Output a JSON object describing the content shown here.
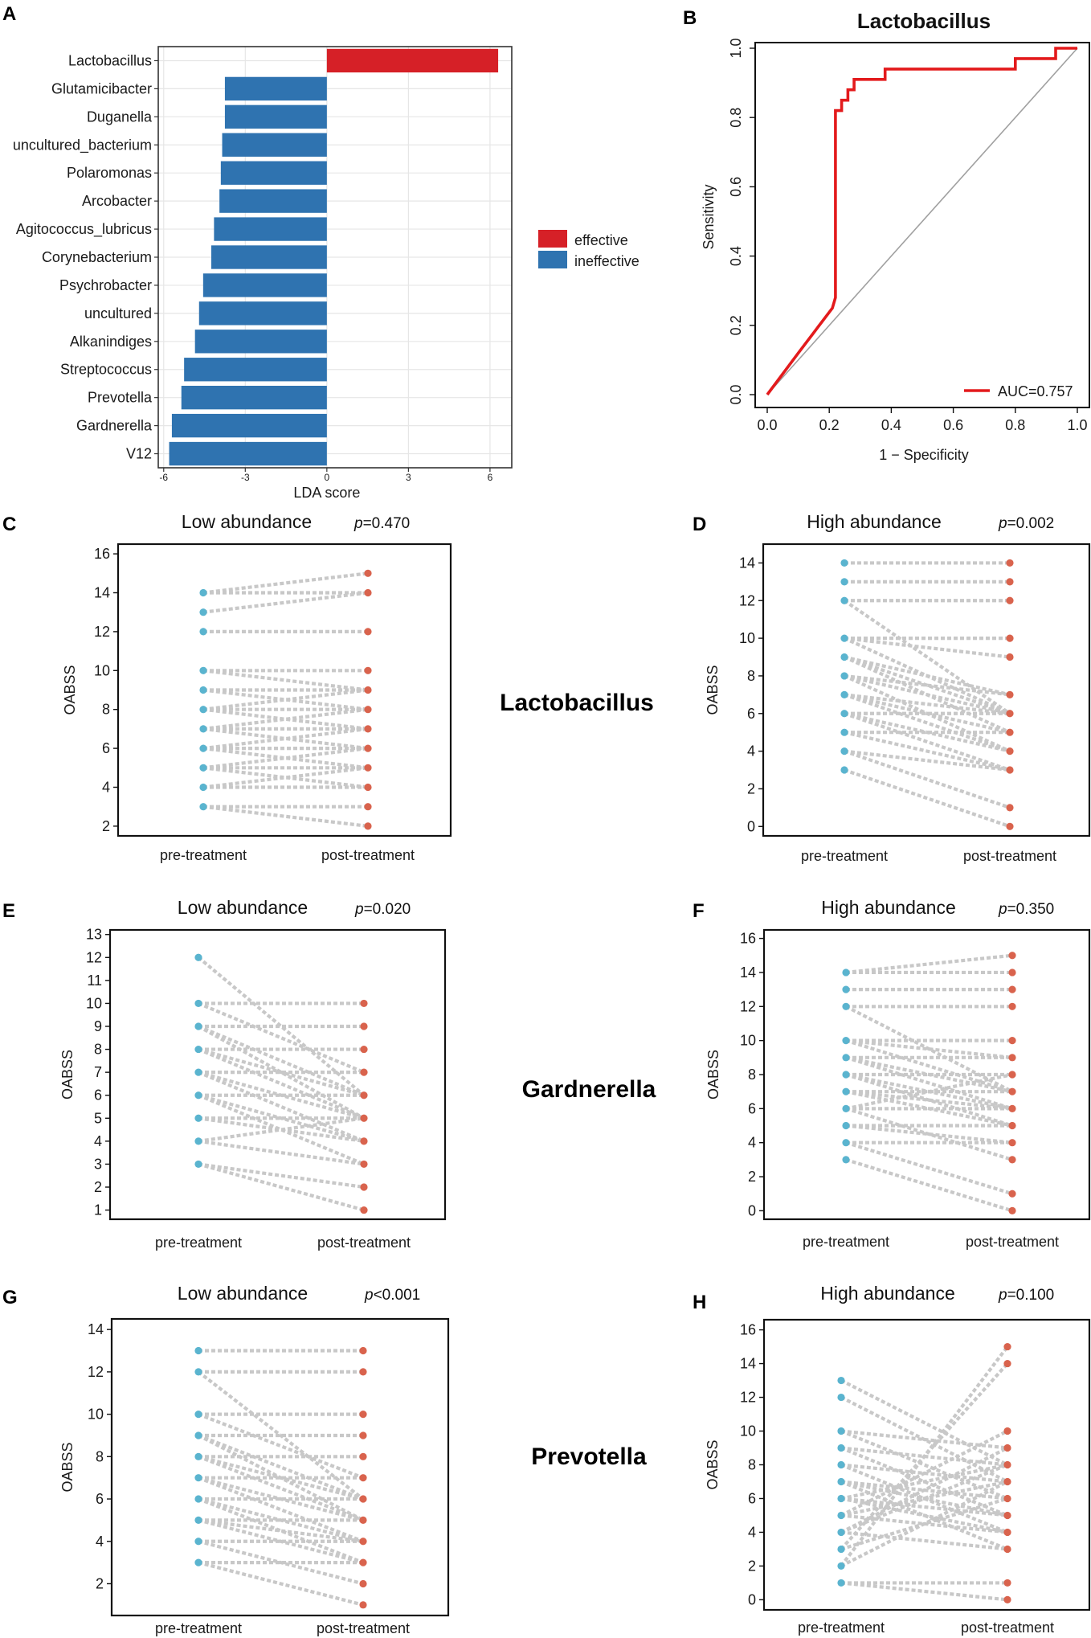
{
  "figure": {
    "panel_letters": [
      "A",
      "B",
      "C",
      "D",
      "E",
      "F",
      "G",
      "H"
    ],
    "genus_labels": [
      "Lactobacillus",
      "Gardnerella",
      "Prevotella"
    ]
  },
  "colors": {
    "effective": "#d62027",
    "ineffective": "#2f73b0",
    "pre": "#5ab4cf",
    "post": "#d9634d",
    "connector": "#c8c8c8",
    "roc": "#e31a1c",
    "diagonal": "#a0a0a0",
    "grid": "#e6e6e6"
  },
  "chart_data": [
    {
      "id": "A",
      "type": "bar",
      "orientation": "horizontal",
      "xlabel": "LDA score",
      "xlim": [
        -6.2,
        6.8
      ],
      "xticks": [
        -6,
        -3,
        0,
        3,
        6
      ],
      "xtick_labels": [
        "-6",
        "-3",
        "0",
        "3",
        "6"
      ],
      "categories": [
        "Lactobacillus",
        "Glutamicibacter",
        "Duganella",
        "uncultured_bacterium",
        "Polaromonas",
        "Arcobacter",
        "Agitococcus_lubricus",
        "Corynebacterium",
        "Psychrobacter",
        "uncultured",
        "Alkanindiges",
        "Streptococcus",
        "Prevotella",
        "Gardnerella",
        "V12"
      ],
      "values": [
        6.3,
        -3.75,
        -3.75,
        -3.85,
        -3.9,
        -3.95,
        -4.15,
        -4.25,
        -4.55,
        -4.7,
        -4.85,
        -5.25,
        -5.35,
        -5.7,
        -5.8
      ],
      "groups": [
        "effective",
        "ineffective",
        "ineffective",
        "ineffective",
        "ineffective",
        "ineffective",
        "ineffective",
        "ineffective",
        "ineffective",
        "ineffective",
        "ineffective",
        "ineffective",
        "ineffective",
        "ineffective",
        "ineffective"
      ],
      "legend": [
        "effective",
        "ineffective"
      ],
      "grid": true
    },
    {
      "id": "B",
      "type": "line",
      "title": "Lactobacillus",
      "xlabel": "1 − Specificity",
      "ylabel": "Sensitivity",
      "xlim": [
        0,
        1
      ],
      "ylim": [
        0,
        1
      ],
      "xtick_labels": [
        "0.0",
        "0.2",
        "0.4",
        "0.6",
        "0.8",
        "1.0"
      ],
      "ytick_labels": [
        "0.0",
        "0.2",
        "0.4",
        "0.6",
        "0.8",
        "1.0"
      ],
      "legend": "AUC=0.757",
      "series": [
        {
          "name": "ROC",
          "x": [
            0,
            0.1,
            0.21,
            0.22,
            0.22,
            0.24,
            0.24,
            0.26,
            0.26,
            0.28,
            0.28,
            0.38,
            0.38,
            0.8,
            0.8,
            0.93,
            0.93,
            0.98,
            0.98,
            1.0
          ],
          "y": [
            0,
            0.12,
            0.25,
            0.28,
            0.82,
            0.82,
            0.85,
            0.85,
            0.88,
            0.88,
            0.91,
            0.91,
            0.94,
            0.94,
            0.97,
            0.97,
            1.0,
            1.0,
            1.0,
            1.0
          ]
        }
      ]
    },
    {
      "id": "C",
      "type": "scatter",
      "title": "Low abundance",
      "p_label": "p",
      "p_value": "=0.470",
      "ylabel": "OABSS",
      "categories": [
        "pre-treatment",
        "post-treatment"
      ],
      "ylim": [
        1.5,
        16.5
      ],
      "yticks": [
        2,
        4,
        6,
        8,
        10,
        12,
        14,
        16
      ],
      "pre": [
        14,
        13,
        12,
        10,
        9,
        8,
        7,
        6,
        5,
        4,
        3
      ],
      "post": [
        15,
        14,
        12,
        10,
        9,
        8,
        7,
        6,
        5,
        4,
        3,
        2
      ],
      "pairs": [
        [
          14,
          15
        ],
        [
          14,
          14
        ],
        [
          13,
          14
        ],
        [
          12,
          12
        ],
        [
          10,
          10
        ],
        [
          10,
          9
        ],
        [
          9,
          9
        ],
        [
          9,
          8
        ],
        [
          8,
          8
        ],
        [
          8,
          7
        ],
        [
          7,
          7
        ],
        [
          7,
          8
        ],
        [
          6,
          6
        ],
        [
          6,
          7
        ],
        [
          5,
          5
        ],
        [
          5,
          6
        ],
        [
          4,
          4
        ],
        [
          4,
          5
        ],
        [
          3,
          3
        ],
        [
          3,
          2
        ],
        [
          6,
          5
        ],
        [
          8,
          9
        ],
        [
          7,
          6
        ],
        [
          5,
          4
        ]
      ]
    },
    {
      "id": "D",
      "type": "scatter",
      "title": "High abundance",
      "p_label": "p",
      "p_value": "=0.002",
      "ylabel": "OABSS",
      "categories": [
        "pre-treatment",
        "post-treatment"
      ],
      "ylim": [
        -0.5,
        15
      ],
      "yticks": [
        0,
        2,
        4,
        6,
        8,
        10,
        12,
        14
      ],
      "pre": [
        14,
        13,
        12,
        10,
        9,
        8,
        7,
        6,
        5,
        4,
        3
      ],
      "post": [
        14,
        13,
        12,
        10,
        9,
        7,
        6,
        5,
        4,
        3,
        1,
        0
      ],
      "pairs": [
        [
          14,
          14
        ],
        [
          13,
          13
        ],
        [
          12,
          12
        ],
        [
          12,
          6
        ],
        [
          10,
          10
        ],
        [
          10,
          9
        ],
        [
          10,
          6
        ],
        [
          9,
          7
        ],
        [
          9,
          5
        ],
        [
          8,
          6
        ],
        [
          8,
          4
        ],
        [
          7,
          6
        ],
        [
          7,
          5
        ],
        [
          6,
          6
        ],
        [
          6,
          4
        ],
        [
          5,
          5
        ],
        [
          5,
          3
        ],
        [
          4,
          3
        ],
        [
          4,
          1
        ],
        [
          3,
          0
        ],
        [
          8,
          7
        ],
        [
          6,
          3
        ],
        [
          9,
          6
        ],
        [
          7,
          4
        ]
      ]
    },
    {
      "id": "E",
      "type": "scatter",
      "title": "Low abundance",
      "p_label": "p",
      "p_value": "=0.020",
      "ylabel": "OABSS",
      "categories": [
        "pre-treatment",
        "post-treatment"
      ],
      "ylim": [
        0.6,
        13.2
      ],
      "yticks": [
        1,
        2,
        3,
        4,
        5,
        6,
        7,
        8,
        9,
        10,
        11,
        12,
        13
      ],
      "pre": [
        12,
        10,
        9,
        8,
        7,
        6,
        5,
        4,
        3
      ],
      "post": [
        10,
        9,
        8,
        7,
        6,
        5,
        4,
        3,
        2,
        1
      ],
      "pairs": [
        [
          12,
          6
        ],
        [
          10,
          10
        ],
        [
          10,
          7
        ],
        [
          9,
          9
        ],
        [
          9,
          6
        ],
        [
          8,
          8
        ],
        [
          8,
          5
        ],
        [
          7,
          7
        ],
        [
          7,
          4
        ],
        [
          6,
          6
        ],
        [
          6,
          3
        ],
        [
          5,
          5
        ],
        [
          5,
          4
        ],
        [
          4,
          5
        ],
        [
          4,
          3
        ],
        [
          3,
          2
        ],
        [
          3,
          1
        ],
        [
          9,
          5
        ],
        [
          8,
          6
        ],
        [
          6,
          4
        ],
        [
          7,
          5
        ]
      ]
    },
    {
      "id": "F",
      "type": "scatter",
      "title": "High abundance",
      "p_label": "p",
      "p_value": "=0.350",
      "ylabel": "OABSS",
      "categories": [
        "pre-treatment",
        "post-treatment"
      ],
      "ylim": [
        -0.5,
        16.5
      ],
      "yticks": [
        0,
        2,
        4,
        6,
        8,
        10,
        12,
        14,
        16
      ],
      "pre": [
        14,
        13,
        12,
        10,
        9,
        8,
        7,
        6,
        5,
        4,
        3
      ],
      "post": [
        15,
        14,
        13,
        12,
        10,
        9,
        8,
        7,
        6,
        5,
        4,
        3,
        1,
        0
      ],
      "pairs": [
        [
          14,
          15
        ],
        [
          14,
          14
        ],
        [
          13,
          13
        ],
        [
          12,
          12
        ],
        [
          12,
          7
        ],
        [
          10,
          10
        ],
        [
          10,
          9
        ],
        [
          9,
          9
        ],
        [
          9,
          6
        ],
        [
          8,
          8
        ],
        [
          8,
          5
        ],
        [
          7,
          7
        ],
        [
          7,
          6
        ],
        [
          6,
          6
        ],
        [
          6,
          8
        ],
        [
          5,
          5
        ],
        [
          5,
          4
        ],
        [
          4,
          4
        ],
        [
          4,
          1
        ],
        [
          3,
          0
        ],
        [
          8,
          6
        ],
        [
          7,
          5
        ],
        [
          9,
          7
        ],
        [
          6,
          3
        ],
        [
          10,
          7
        ]
      ]
    },
    {
      "id": "G",
      "type": "scatter",
      "title": "Low abundance",
      "p_label": "p",
      "p_value": "<0.001",
      "ylabel": "OABSS",
      "categories": [
        "pre-treatment",
        "post-treatment"
      ],
      "ylim": [
        0.5,
        14.5
      ],
      "yticks": [
        2,
        4,
        6,
        8,
        10,
        12,
        14
      ],
      "pre": [
        13,
        12,
        10,
        9,
        8,
        7,
        6,
        5,
        4,
        3
      ],
      "post": [
        13,
        12,
        10,
        9,
        8,
        7,
        6,
        5,
        4,
        3,
        2,
        1
      ],
      "pairs": [
        [
          13,
          13
        ],
        [
          12,
          12
        ],
        [
          12,
          6
        ],
        [
          10,
          10
        ],
        [
          10,
          7
        ],
        [
          9,
          9
        ],
        [
          9,
          6
        ],
        [
          8,
          8
        ],
        [
          8,
          5
        ],
        [
          7,
          7
        ],
        [
          7,
          4
        ],
        [
          6,
          6
        ],
        [
          6,
          3
        ],
        [
          5,
          5
        ],
        [
          5,
          4
        ],
        [
          4,
          4
        ],
        [
          4,
          2
        ],
        [
          3,
          3
        ],
        [
          3,
          1
        ],
        [
          9,
          5
        ],
        [
          8,
          6
        ],
        [
          6,
          4
        ],
        [
          5,
          3
        ],
        [
          7,
          5
        ]
      ]
    },
    {
      "id": "H",
      "type": "scatter",
      "title": "High abundance",
      "p_label": "p",
      "p_value": "=0.100",
      "ylabel": "OABSS",
      "categories": [
        "pre-treatment",
        "post-treatment"
      ],
      "ylim": [
        -0.6,
        16.6
      ],
      "yticks": [
        0,
        2,
        4,
        6,
        8,
        10,
        12,
        14,
        16
      ],
      "pre": [
        13,
        12,
        10,
        9,
        8,
        7,
        6,
        5,
        4,
        3,
        2,
        1
      ],
      "post": [
        15,
        14,
        10,
        9,
        8,
        7,
        6,
        5,
        4,
        3,
        1,
        0
      ],
      "pairs": [
        [
          13,
          8
        ],
        [
          12,
          7
        ],
        [
          10,
          9
        ],
        [
          10,
          6
        ],
        [
          9,
          8
        ],
        [
          9,
          5
        ],
        [
          8,
          7
        ],
        [
          8,
          4
        ],
        [
          7,
          6
        ],
        [
          7,
          3
        ],
        [
          6,
          8
        ],
        [
          6,
          5
        ],
        [
          5,
          10
        ],
        [
          5,
          4
        ],
        [
          4,
          9
        ],
        [
          4,
          3
        ],
        [
          3,
          14
        ],
        [
          3,
          6
        ],
        [
          2,
          15
        ],
        [
          2,
          7
        ],
        [
          1,
          1
        ],
        [
          1,
          0
        ],
        [
          6,
          4
        ],
        [
          5,
          7
        ],
        [
          4,
          8
        ],
        [
          7,
          5
        ]
      ]
    }
  ]
}
